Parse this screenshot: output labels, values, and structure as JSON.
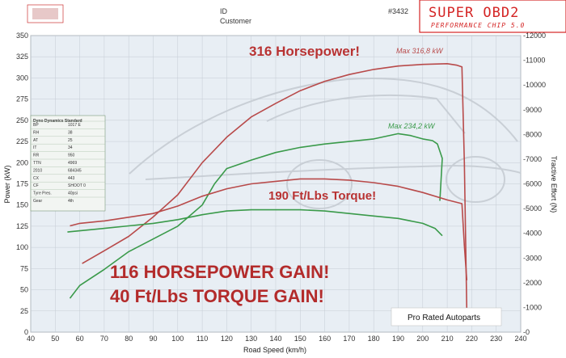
{
  "header": {
    "id_label": "ID",
    "customer_label": "Customer",
    "number": "#3432"
  },
  "brand": {
    "title": "SUPER OBD2",
    "subtitle": "PERFORMANCE CHIP 5.0",
    "color": "#d42424"
  },
  "watermark": {
    "text": "Pro Rated Autoparts"
  },
  "annotations": {
    "hp_peak": "316 Horsepower!",
    "torque_peak": "190 Ft/Lbs Torque!",
    "hp_gain": "116 HORSEPOWER GAIN!",
    "torque_gain": "40 Ft/Lbs TORQUE GAIN!",
    "max_red": "Max 316,8 kW",
    "max_green": "Max 234,2 kW"
  },
  "info_table": {
    "title": "Dyno Dynamics Standard",
    "rows": [
      [
        "BP",
        "1017 E"
      ],
      [
        "RH",
        "38"
      ],
      [
        "AT",
        "25"
      ],
      [
        "IT",
        "34"
      ],
      [
        "RR",
        "950"
      ],
      [
        "TTN",
        "4969"
      ],
      [
        "2010",
        "684345"
      ],
      [
        "CX",
        "443"
      ],
      [
        "CF",
        "SHOOT 0"
      ],
      [
        "Tyre Pres.",
        "40psi"
      ],
      [
        "Gear",
        "4th"
      ]
    ]
  },
  "chart_data": {
    "type": "line",
    "xlabel": "Road Speed (km/h)",
    "ylabel": "Power (kW)",
    "y2label": "Tractive Effort (N)",
    "xlim": [
      40,
      240
    ],
    "ylim": [
      0,
      350
    ],
    "y2lim": [
      0,
      12000
    ],
    "x_ticks": [
      40,
      50,
      60,
      70,
      80,
      90,
      100,
      110,
      120,
      130,
      140,
      150,
      160,
      170,
      180,
      190,
      200,
      210,
      220,
      230,
      240
    ],
    "y_ticks": [
      0,
      25,
      50,
      75,
      100,
      125,
      150,
      175,
      200,
      225,
      250,
      275,
      300,
      325,
      350
    ],
    "y2_ticks": [
      0,
      1000,
      2000,
      3000,
      4000,
      5000,
      6000,
      7000,
      8000,
      9000,
      10000,
      11000,
      12000
    ],
    "grid": true,
    "series": [
      {
        "name": "",
        "color": "#b84a4a",
        "axis": "left",
        "points": [
          [
            61,
            81
          ],
          [
            70,
            96
          ],
          [
            80,
            113
          ],
          [
            90,
            136
          ],
          [
            100,
            162
          ],
          [
            110,
            200
          ],
          [
            120,
            230
          ],
          [
            130,
            254
          ],
          [
            140,
            270
          ],
          [
            150,
            285
          ],
          [
            160,
            296
          ],
          [
            170,
            304
          ],
          [
            180,
            310
          ],
          [
            190,
            314
          ],
          [
            200,
            316
          ],
          [
            210,
            316.8
          ],
          [
            214,
            315
          ],
          [
            216,
            313
          ],
          [
            217,
            200
          ],
          [
            218,
            25
          ]
        ]
      },
      {
        "name": "",
        "color": "#3a9a4a",
        "axis": "left",
        "points": [
          [
            56,
            40
          ],
          [
            60,
            55
          ],
          [
            70,
            74
          ],
          [
            80,
            95
          ],
          [
            90,
            110
          ],
          [
            100,
            125
          ],
          [
            110,
            150
          ],
          [
            115,
            175
          ],
          [
            120,
            193
          ],
          [
            130,
            203
          ],
          [
            140,
            212
          ],
          [
            150,
            218
          ],
          [
            160,
            222
          ],
          [
            170,
            225
          ],
          [
            180,
            228
          ],
          [
            190,
            234.2
          ],
          [
            195,
            232
          ],
          [
            200,
            228
          ],
          [
            204,
            226
          ],
          [
            206,
            222
          ],
          [
            208,
            205
          ],
          [
            207,
            155
          ]
        ]
      },
      {
        "name": "",
        "color": "#b84a4a",
        "axis": "right",
        "points": [
          [
            56,
            4300
          ],
          [
            60,
            4400
          ],
          [
            70,
            4500
          ],
          [
            80,
            4650
          ],
          [
            90,
            4800
          ],
          [
            100,
            5100
          ],
          [
            110,
            5500
          ],
          [
            120,
            5800
          ],
          [
            130,
            6000
          ],
          [
            140,
            6100
          ],
          [
            150,
            6200
          ],
          [
            160,
            6200
          ],
          [
            170,
            6150
          ],
          [
            180,
            6050
          ],
          [
            190,
            5900
          ],
          [
            200,
            5650
          ],
          [
            210,
            5350
          ],
          [
            216,
            5200
          ],
          [
            217,
            3500
          ],
          [
            218,
            2100
          ]
        ]
      },
      {
        "name": "",
        "color": "#3a9a4a",
        "axis": "right",
        "points": [
          [
            55,
            4050
          ],
          [
            60,
            4100
          ],
          [
            70,
            4200
          ],
          [
            80,
            4300
          ],
          [
            90,
            4400
          ],
          [
            100,
            4550
          ],
          [
            110,
            4750
          ],
          [
            120,
            4900
          ],
          [
            130,
            4950
          ],
          [
            140,
            4950
          ],
          [
            150,
            4950
          ],
          [
            160,
            4900
          ],
          [
            170,
            4800
          ],
          [
            180,
            4700
          ],
          [
            190,
            4600
          ],
          [
            200,
            4400
          ],
          [
            205,
            4200
          ],
          [
            208,
            3900
          ]
        ]
      }
    ]
  }
}
